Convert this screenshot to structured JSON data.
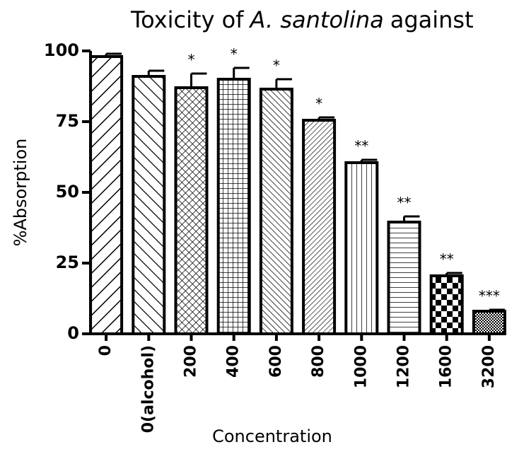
{
  "chart_data": {
    "type": "bar",
    "title": [
      "Toxicity of",
      "A. santolina",
      "against"
    ],
    "x_label": "Concentration",
    "y_label": "%Absorption",
    "categories": [
      "0",
      "0(alcohol)",
      "200",
      "400",
      "600",
      "800",
      "1000",
      "1200",
      "1600",
      "3200"
    ],
    "values": [
      98,
      91,
      87,
      90,
      86.5,
      75.5,
      60.5,
      39.5,
      20.5,
      8
    ],
    "errors": [
      1,
      2,
      5,
      4,
      3.5,
      1,
      1,
      2,
      1,
      0.5
    ],
    "significance": [
      null,
      null,
      "*",
      "*",
      "*",
      "*",
      "**",
      "**",
      "**",
      "***"
    ],
    "color": "#000000",
    "ylim": [
      0,
      100
    ],
    "yticks": [
      0,
      25,
      50,
      75,
      100
    ],
    "grid": false
  }
}
